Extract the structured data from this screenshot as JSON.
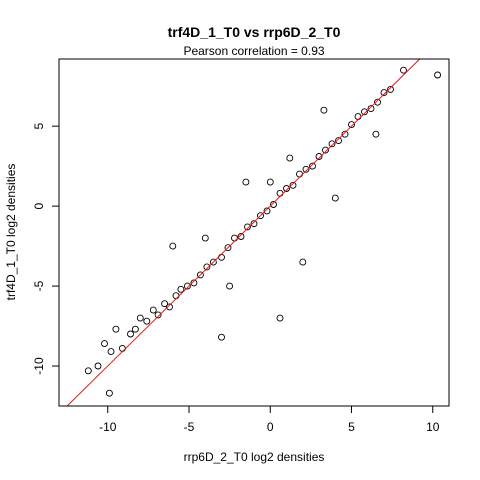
{
  "chart_data": {
    "type": "scatter",
    "title": "trf4D_1_T0 vs rrp6D_2_T0",
    "subtitle": "Pearson correlation =  0.93",
    "xlabel": "rrp6D_2_T0 log2 densities",
    "ylabel": "trf4D_1_T0 log2 densities",
    "xlim": [
      -13,
      11
    ],
    "ylim": [
      -12.5,
      9.2
    ],
    "xticks": [
      -10,
      -5,
      0,
      5,
      10
    ],
    "yticks": [
      -10,
      -5,
      0,
      5
    ],
    "fit_line": {
      "slope": 1.0,
      "intercept": 0.0,
      "color": "#e41a1c"
    },
    "point_style": "open-circle",
    "point_color": "#000000",
    "grid": false,
    "legend": "none",
    "points": {
      "x": [
        -11.2,
        -10.6,
        -10.2,
        -9.8,
        -9.5,
        -9.9,
        -9.1,
        -8.6,
        -8.3,
        -8.0,
        -7.6,
        -7.2,
        -6.9,
        -6.5,
        -6.2,
        -5.8,
        -5.5,
        -5.1,
        -4.7,
        -4.3,
        -3.9,
        -3.5,
        -3.0,
        -2.6,
        -2.2,
        -1.8,
        -1.4,
        -1.0,
        -0.6,
        -0.2,
        0.2,
        0.6,
        1.0,
        1.4,
        1.8,
        2.2,
        2.6,
        3.0,
        3.4,
        3.8,
        4.2,
        4.6,
        5.0,
        5.4,
        5.8,
        6.2,
        6.6,
        7.0,
        7.4,
        8.2,
        10.3,
        -3.0,
        0.6,
        2.0,
        -1.5,
        4.0,
        -6.0,
        6.5,
        -2.5,
        1.2,
        0.0,
        -4.0,
        3.3
      ],
      "y": [
        -10.3,
        -10.0,
        -8.6,
        -9.1,
        -7.7,
        -11.7,
        -8.9,
        -8.0,
        -7.7,
        -7.0,
        -7.2,
        -6.5,
        -6.8,
        -6.1,
        -6.3,
        -5.6,
        -5.2,
        -5.0,
        -4.8,
        -4.3,
        -3.8,
        -3.5,
        -3.2,
        -2.6,
        -2.0,
        -1.9,
        -1.3,
        -1.1,
        -0.6,
        -0.3,
        0.1,
        0.8,
        1.1,
        1.3,
        2.0,
        2.3,
        2.5,
        3.1,
        3.5,
        3.9,
        4.1,
        4.5,
        5.1,
        5.6,
        5.9,
        6.1,
        6.5,
        7.1,
        7.3,
        8.5,
        8.2,
        -8.2,
        -7.0,
        -3.5,
        1.5,
        0.5,
        -2.5,
        4.5,
        -5.0,
        3.0,
        1.5,
        -2.0,
        6.0
      ]
    }
  }
}
